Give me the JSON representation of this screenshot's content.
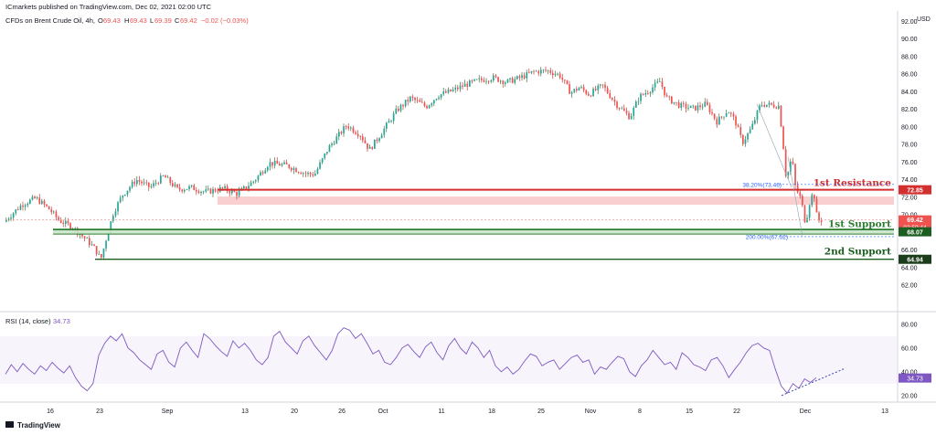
{
  "header": {
    "published": "ICmarkets published on TradingView.com, Dec 02, 2021 02:00 UTC",
    "symbol": "CFDs on Brent Crude Oil, 4h,",
    "ohlc": {
      "o_label": "O",
      "o": "69.43",
      "h_label": "H",
      "h": "69.43",
      "l_label": "L",
      "l": "69.39",
      "c_label": "C",
      "c": "69.42",
      "change": "−0.02 (−0.03%)"
    }
  },
  "footer": {
    "brand": "TradingView"
  },
  "colors": {
    "up": "#26a69a",
    "down": "#ef5350",
    "up_dark": "#1b5e20",
    "down_dark": "#b71c1c",
    "resistance": "#d32f2f",
    "support": "#2e7d32",
    "rsi": "#7e57c2",
    "fib": "#2962ff"
  },
  "chart_data": [
    {
      "type": "candlestick",
      "currency": "USD",
      "ylim": [
        62,
        92
      ],
      "y_ticks": [
        "92.00",
        "90.00",
        "88.00",
        "86.00",
        "84.00",
        "82.00",
        "80.00",
        "78.00",
        "76.00",
        "74.00",
        "72.00",
        "70.00",
        "68.00",
        "66.00",
        "64.00",
        "62.00"
      ],
      "x_ticks": [
        "16",
        "23",
        "Sep",
        "13",
        "20",
        "26",
        "Oct",
        "11",
        "18",
        "25",
        "Nov",
        "8",
        "15",
        "22",
        "Dec",
        "13"
      ],
      "price_path": [
        [
          0,
          69.2
        ],
        [
          20,
          71.2
        ],
        [
          35,
          71.9
        ],
        [
          50,
          70.6
        ],
        [
          60,
          69.4
        ],
        [
          75,
          68.6
        ],
        [
          90,
          67.2
        ],
        [
          100,
          66.1
        ],
        [
          106,
          64.9
        ],
        [
          112,
          67.3
        ],
        [
          120,
          70.3
        ],
        [
          130,
          72.3
        ],
        [
          145,
          74.0
        ],
        [
          160,
          73.1
        ],
        [
          175,
          74.4
        ],
        [
          190,
          72.9
        ],
        [
          205,
          73.1
        ],
        [
          220,
          72.6
        ],
        [
          240,
          73.0
        ],
        [
          255,
          72.4
        ],
        [
          262,
          72.9
        ],
        [
          275,
          74.0
        ],
        [
          290,
          75.9
        ],
        [
          310,
          75.6
        ],
        [
          330,
          74.7
        ],
        [
          340,
          74.6
        ],
        [
          355,
          77.6
        ],
        [
          375,
          80.2
        ],
        [
          390,
          79.1
        ],
        [
          400,
          77.4
        ],
        [
          415,
          79.6
        ],
        [
          430,
          81.9
        ],
        [
          445,
          83.3
        ],
        [
          462,
          82.3
        ],
        [
          475,
          83.6
        ],
        [
          490,
          84.1
        ],
        [
          505,
          84.8
        ],
        [
          520,
          85.3
        ],
        [
          535,
          85.6
        ],
        [
          550,
          85.1
        ],
        [
          565,
          85.6
        ],
        [
          580,
          86.3
        ],
        [
          595,
          86.4
        ],
        [
          608,
          85.9
        ],
        [
          620,
          83.9
        ],
        [
          630,
          84.5
        ],
        [
          640,
          83.7
        ],
        [
          655,
          84.7
        ],
        [
          670,
          82.6
        ],
        [
          685,
          81.1
        ],
        [
          695,
          83.4
        ],
        [
          705,
          84.1
        ],
        [
          718,
          85.2
        ],
        [
          725,
          83.3
        ],
        [
          740,
          82.4
        ],
        [
          755,
          82.1
        ],
        [
          768,
          82.6
        ],
        [
          780,
          80.6
        ],
        [
          792,
          81.9
        ],
        [
          800,
          80.7
        ],
        [
          808,
          78.2
        ],
        [
          818,
          79.9
        ],
        [
          828,
          82.6
        ],
        [
          848,
          82.4
        ],
        [
          852,
          78.6
        ],
        [
          856,
          74.0
        ],
        [
          862,
          76.6
        ],
        [
          866,
          73.1
        ],
        [
          872,
          71.8
        ],
        [
          877,
          69.0
        ],
        [
          882,
          71.7
        ],
        [
          886,
          72.6
        ],
        [
          890,
          69.3
        ],
        [
          893,
          69.4
        ]
      ],
      "last_price": "69.42",
      "countdown": "03:59:44",
      "levels": [
        {
          "name": "1st Resistance",
          "value": "72.85"
        },
        {
          "name": "1st Support",
          "value": "68.07"
        },
        {
          "name": "2nd Support",
          "value": "64.94"
        }
      ],
      "fib_labels": [
        {
          "text": "38.20%(73.46)",
          "value": 73.46
        },
        {
          "text": "200.00%(67.52)",
          "value": 67.52
        }
      ]
    },
    {
      "type": "line",
      "title": "RSI (14, close)",
      "last_value": "34.73",
      "ylim": [
        16,
        86
      ],
      "y_ticks": [
        "80.00",
        "60.00",
        "40.00",
        "20.00"
      ],
      "values": [
        38,
        46,
        40,
        47,
        42,
        38,
        45,
        41,
        48,
        43,
        39,
        45,
        35,
        28,
        24,
        30,
        54,
        64,
        70,
        66,
        72,
        60,
        56,
        50,
        46,
        42,
        55,
        58,
        48,
        44,
        60,
        65,
        58,
        52,
        72,
        68,
        62,
        57,
        53,
        66,
        60,
        64,
        58,
        50,
        46,
        52,
        70,
        74,
        65,
        60,
        55,
        66,
        70,
        62,
        56,
        50,
        58,
        72,
        77,
        75,
        68,
        72,
        64,
        55,
        58,
        48,
        46,
        52,
        60,
        63,
        57,
        52,
        61,
        65,
        56,
        50,
        62,
        68,
        60,
        55,
        65,
        60,
        52,
        58,
        45,
        40,
        44,
        38,
        42,
        49,
        55,
        53,
        45,
        48,
        50,
        42,
        47,
        52,
        54,
        48,
        50,
        38,
        44,
        42,
        48,
        53,
        51,
        40,
        36,
        45,
        50,
        58,
        52,
        46,
        48,
        42,
        56,
        52,
        46,
        44,
        41,
        50,
        52,
        45,
        35,
        42,
        48,
        56,
        62,
        64,
        60,
        58,
        42,
        28,
        22,
        30,
        26,
        34,
        31,
        35
      ]
    }
  ]
}
